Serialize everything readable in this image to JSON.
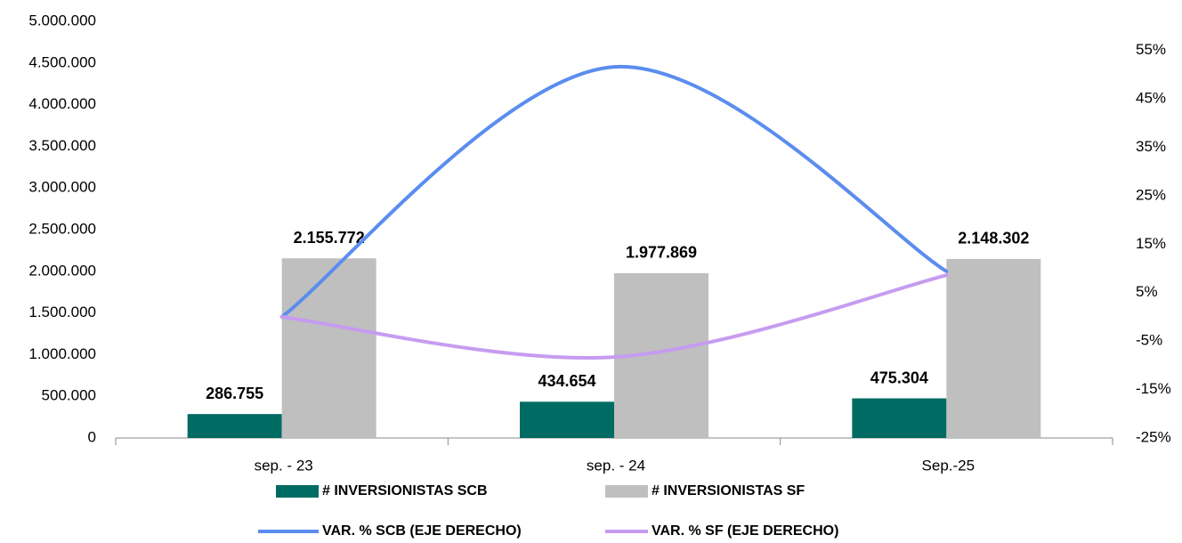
{
  "chart_data": {
    "type": "bar",
    "categories": [
      "sep. - 23",
      "sep. - 24",
      "Sep.-25"
    ],
    "series": [
      {
        "name": "# INVERSIONISTAS SCB",
        "type": "bar",
        "color": "#006b63",
        "values": [
          286755,
          434654,
          475304
        ],
        "value_labels": [
          "286.755",
          "434.654",
          "475.304"
        ]
      },
      {
        "name": "# INVERSIONISTAS SF",
        "type": "bar",
        "color": "#bfbfbf",
        "values": [
          2155772,
          1977869,
          2148302
        ],
        "value_labels": [
          "2.155.772",
          "1.977.869",
          "2.148.302"
        ]
      },
      {
        "name": "VAR. % SCB (EJE DERECHO)",
        "type": "line",
        "axis": "y2",
        "color": "#5b8def",
        "values": [
          0,
          51.6,
          9.4
        ]
      },
      {
        "name": "VAR. % SF (EJE DERECHO)",
        "type": "line",
        "axis": "y2",
        "color": "#c69cf0",
        "values": [
          0,
          -8.3,
          8.6
        ]
      }
    ],
    "ylim": [
      0,
      5000000
    ],
    "yticks": [
      0,
      {
        "value": 500000,
        "label": "500.000"
      },
      {
        "value": 1000000,
        "label": "1.000.000"
      },
      {
        "value": 1500000,
        "label": "1.500.000"
      },
      {
        "value": 2000000,
        "label": "2.000.000"
      },
      {
        "value": 2500000,
        "label": "2.500.000"
      },
      {
        "value": 3000000,
        "label": "3.000.000"
      },
      {
        "value": 3500000,
        "label": "3.500.000"
      },
      {
        "value": 4000000,
        "label": "4.000.000"
      },
      {
        "value": 4500000,
        "label": "4.500.000"
      },
      {
        "value": 5000000,
        "label": "5.000.000"
      }
    ],
    "y2lim": [
      -25,
      61
    ],
    "y2ticks": [
      {
        "value": -25,
        "label": "-25%"
      },
      {
        "value": -15,
        "label": "-15%"
      },
      {
        "value": -5,
        "label": "-5%"
      },
      {
        "value": 5,
        "label": "5%"
      },
      {
        "value": 15,
        "label": "15%"
      },
      {
        "value": 25,
        "label": "25%"
      },
      {
        "value": 35,
        "label": "35%"
      },
      {
        "value": 45,
        "label": "45%"
      },
      {
        "value": 55,
        "label": "55%"
      }
    ],
    "legend": "bottom"
  }
}
